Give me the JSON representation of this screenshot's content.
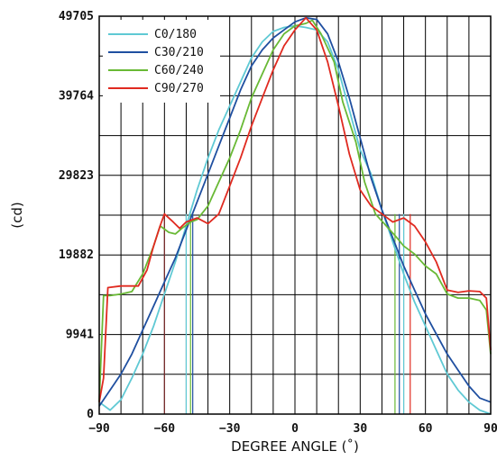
{
  "chart_data": {
    "type": "line",
    "xlabel": "DEGREE ANGLE (˚)",
    "ylabel": "(cd)",
    "xlim": [
      -90,
      90
    ],
    "ylim": [
      0,
      49705
    ],
    "x_ticks": [
      "-90",
      "-60",
      "-30",
      "0",
      "30",
      "60",
      "90"
    ],
    "y_ticks": [
      "0",
      "9941",
      "19882",
      "29823",
      "39764",
      "49705"
    ],
    "grid": true,
    "legend_position": "top-left",
    "series": [
      {
        "name": "C0/180",
        "color": "#5fc9d4",
        "points": [
          [
            -90,
            1500
          ],
          [
            -85,
            500
          ],
          [
            -80,
            1800
          ],
          [
            -75,
            4500
          ],
          [
            -70,
            7500
          ],
          [
            -65,
            11000
          ],
          [
            -60,
            15000
          ],
          [
            -55,
            19000
          ],
          [
            -50,
            23500
          ],
          [
            -45,
            28000
          ],
          [
            -40,
            32000
          ],
          [
            -35,
            35500
          ],
          [
            -30,
            38500
          ],
          [
            -25,
            41500
          ],
          [
            -20,
            44500
          ],
          [
            -15,
            46500
          ],
          [
            -10,
            47800
          ],
          [
            -5,
            48300
          ],
          [
            0,
            48500
          ],
          [
            5,
            48300
          ],
          [
            10,
            48000
          ],
          [
            15,
            46500
          ],
          [
            20,
            43000
          ],
          [
            25,
            38000
          ],
          [
            30,
            33000
          ],
          [
            35,
            30000
          ],
          [
            40,
            25500
          ],
          [
            45,
            21500
          ],
          [
            50,
            17500
          ],
          [
            55,
            14000
          ],
          [
            60,
            11000
          ],
          [
            65,
            8000
          ],
          [
            70,
            5000
          ],
          [
            75,
            3000
          ],
          [
            80,
            1500
          ],
          [
            85,
            500
          ],
          [
            90,
            0
          ]
        ]
      },
      {
        "name": "C30/210",
        "color": "#1f4fa0",
        "points": [
          [
            -90,
            1000
          ],
          [
            -85,
            3000
          ],
          [
            -80,
            5000
          ],
          [
            -75,
            7500
          ],
          [
            -70,
            10500
          ],
          [
            -65,
            13500
          ],
          [
            -60,
            16500
          ],
          [
            -55,
            19500
          ],
          [
            -50,
            23000
          ],
          [
            -45,
            26500
          ],
          [
            -40,
            30000
          ],
          [
            -35,
            33500
          ],
          [
            -30,
            37000
          ],
          [
            -25,
            40500
          ],
          [
            -20,
            43500
          ],
          [
            -15,
            45500
          ],
          [
            -10,
            47000
          ],
          [
            -5,
            48000
          ],
          [
            0,
            49000
          ],
          [
            5,
            49500
          ],
          [
            10,
            49300
          ],
          [
            15,
            47500
          ],
          [
            20,
            44000
          ],
          [
            25,
            39500
          ],
          [
            30,
            34500
          ],
          [
            35,
            29500
          ],
          [
            40,
            25500
          ],
          [
            45,
            22000
          ],
          [
            50,
            18500
          ],
          [
            55,
            15500
          ],
          [
            60,
            12500
          ],
          [
            65,
            10000
          ],
          [
            70,
            7500
          ],
          [
            75,
            5500
          ],
          [
            80,
            3500
          ],
          [
            85,
            2000
          ],
          [
            90,
            1500
          ]
        ]
      },
      {
        "name": "C60/240",
        "color": "#69b935",
        "points": [
          [
            -90,
            1500
          ],
          [
            -88,
            14800
          ],
          [
            -85,
            14800
          ],
          [
            -80,
            15000
          ],
          [
            -75,
            15300
          ],
          [
            -70,
            17500
          ],
          [
            -65,
            21000
          ],
          [
            -62,
            23500
          ],
          [
            -58,
            22700
          ],
          [
            -55,
            22500
          ],
          [
            -52,
            23200
          ],
          [
            -48,
            24000
          ],
          [
            -45,
            24300
          ],
          [
            -40,
            26000
          ],
          [
            -35,
            29000
          ],
          [
            -30,
            32000
          ],
          [
            -25,
            35500
          ],
          [
            -20,
            39500
          ],
          [
            -15,
            42500
          ],
          [
            -10,
            45500
          ],
          [
            -5,
            47500
          ],
          [
            0,
            48500
          ],
          [
            5,
            48800
          ],
          [
            8,
            49200
          ],
          [
            12,
            47500
          ],
          [
            18,
            44000
          ],
          [
            22,
            39000
          ],
          [
            28,
            34000
          ],
          [
            32,
            29000
          ],
          [
            37,
            25000
          ],
          [
            42,
            23500
          ],
          [
            47,
            22000
          ],
          [
            50,
            21000
          ],
          [
            55,
            20000
          ],
          [
            60,
            18500
          ],
          [
            65,
            17500
          ],
          [
            70,
            15000
          ],
          [
            75,
            14500
          ],
          [
            80,
            14500
          ],
          [
            85,
            14200
          ],
          [
            88,
            13000
          ],
          [
            90,
            7500
          ]
        ]
      },
      {
        "name": "C90/270",
        "color": "#e02a20",
        "points": [
          [
            -90,
            1500
          ],
          [
            -88,
            4500
          ],
          [
            -86,
            15800
          ],
          [
            -80,
            16000
          ],
          [
            -72,
            16000
          ],
          [
            -68,
            18000
          ],
          [
            -65,
            21000
          ],
          [
            -62,
            23500
          ],
          [
            -60,
            25000
          ],
          [
            -56,
            24000
          ],
          [
            -53,
            23200
          ],
          [
            -50,
            24000
          ],
          [
            -45,
            24500
          ],
          [
            -40,
            23800
          ],
          [
            -35,
            25000
          ],
          [
            -30,
            28500
          ],
          [
            -25,
            32000
          ],
          [
            -20,
            36000
          ],
          [
            -15,
            39500
          ],
          [
            -10,
            43000
          ],
          [
            -5,
            46000
          ],
          [
            0,
            48000
          ],
          [
            5,
            49500
          ],
          [
            10,
            48000
          ],
          [
            15,
            44000
          ],
          [
            20,
            38500
          ],
          [
            25,
            32500
          ],
          [
            30,
            28000
          ],
          [
            35,
            26000
          ],
          [
            40,
            25000
          ],
          [
            45,
            24000
          ],
          [
            50,
            24500
          ],
          [
            55,
            23500
          ],
          [
            60,
            21500
          ],
          [
            65,
            19000
          ],
          [
            70,
            15500
          ],
          [
            75,
            15200
          ],
          [
            80,
            15400
          ],
          [
            85,
            15300
          ],
          [
            88,
            14500
          ],
          [
            90,
            8000
          ]
        ]
      }
    ],
    "drop_lines": [
      {
        "x": -60,
        "color": "#7a2b2b"
      },
      {
        "x": -50,
        "color": "#5fc9d4"
      },
      {
        "x": -48,
        "color": "#69b935"
      },
      {
        "x": -47,
        "color": "#1f4fa0"
      },
      {
        "x": 46,
        "color": "#69b935"
      },
      {
        "x": 48,
        "color": "#1f4fa0"
      },
      {
        "x": 50,
        "color": "#5fc9d4"
      },
      {
        "x": 53,
        "color": "#e02a20"
      }
    ]
  }
}
